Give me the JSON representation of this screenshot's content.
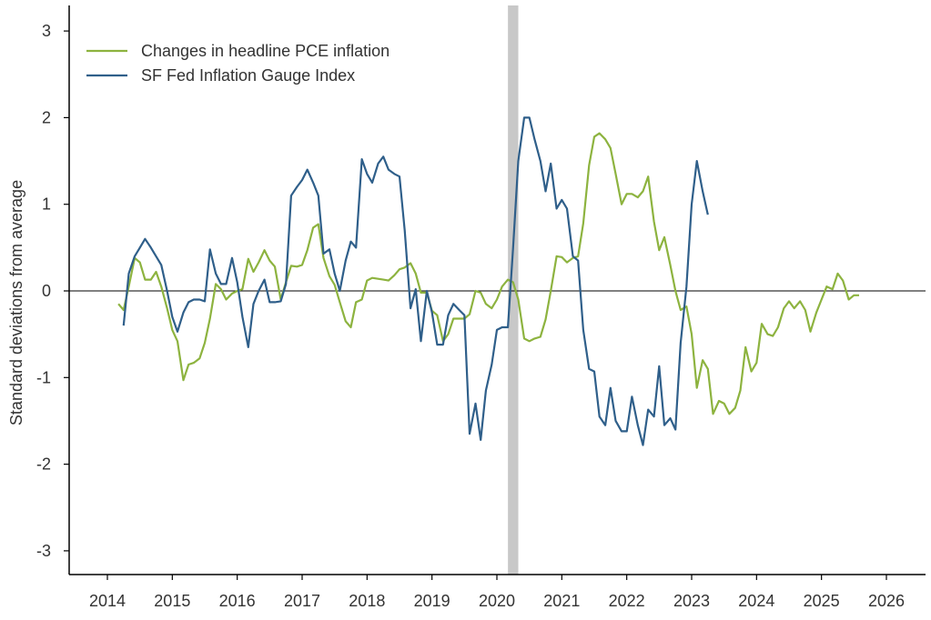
{
  "chart_data": {
    "type": "line",
    "title": "",
    "xlabel": "",
    "ylabel": "Standard deviations from average",
    "xlim": [
      2014,
      2026.7
    ],
    "ylim": [
      -3.3,
      3.3
    ],
    "xticks": [
      2014,
      2015,
      2016,
      2017,
      2018,
      2019,
      2020,
      2021,
      2022,
      2023,
      2024,
      2025,
      2026
    ],
    "yticks": [
      -3,
      -2,
      -1,
      0,
      1,
      2,
      3
    ],
    "legend_position": "top-left",
    "grid": false,
    "zero_line": true,
    "recession_band": [
      2020.17,
      2020.33
    ],
    "recession_color": "#c8c8c8",
    "series": [
      {
        "name": "Changes in headline PCE inflation",
        "color": "#8db33f",
        "points": [
          [
            2014.17,
            -0.15
          ],
          [
            2014.25,
            -0.22
          ],
          [
            2014.33,
            0.05
          ],
          [
            2014.42,
            0.38
          ],
          [
            2014.5,
            0.33
          ],
          [
            2014.58,
            0.13
          ],
          [
            2014.67,
            0.13
          ],
          [
            2014.75,
            0.22
          ],
          [
            2014.83,
            0.05
          ],
          [
            2014.92,
            -0.2
          ],
          [
            2015.0,
            -0.45
          ],
          [
            2015.08,
            -0.58
          ],
          [
            2015.17,
            -1.03
          ],
          [
            2015.25,
            -0.85
          ],
          [
            2015.33,
            -0.83
          ],
          [
            2015.42,
            -0.78
          ],
          [
            2015.5,
            -0.6
          ],
          [
            2015.58,
            -0.32
          ],
          [
            2015.67,
            0.08
          ],
          [
            2015.75,
            0.02
          ],
          [
            2015.83,
            -0.1
          ],
          [
            2015.92,
            -0.03
          ],
          [
            2016.0,
            0.0
          ],
          [
            2016.08,
            0.02
          ],
          [
            2016.17,
            0.37
          ],
          [
            2016.25,
            0.22
          ],
          [
            2016.33,
            0.33
          ],
          [
            2016.42,
            0.47
          ],
          [
            2016.5,
            0.35
          ],
          [
            2016.58,
            0.28
          ],
          [
            2016.67,
            -0.1
          ],
          [
            2016.75,
            0.1
          ],
          [
            2016.83,
            0.29
          ],
          [
            2016.92,
            0.28
          ],
          [
            2017.0,
            0.3
          ],
          [
            2017.08,
            0.47
          ],
          [
            2017.17,
            0.73
          ],
          [
            2017.25,
            0.77
          ],
          [
            2017.33,
            0.38
          ],
          [
            2017.42,
            0.17
          ],
          [
            2017.5,
            0.07
          ],
          [
            2017.58,
            -0.13
          ],
          [
            2017.67,
            -0.35
          ],
          [
            2017.75,
            -0.42
          ],
          [
            2017.83,
            -0.13
          ],
          [
            2017.92,
            -0.1
          ],
          [
            2018.0,
            0.12
          ],
          [
            2018.08,
            0.15
          ],
          [
            2018.17,
            0.14
          ],
          [
            2018.25,
            0.13
          ],
          [
            2018.33,
            0.12
          ],
          [
            2018.42,
            0.18
          ],
          [
            2018.5,
            0.25
          ],
          [
            2018.58,
            0.27
          ],
          [
            2018.67,
            0.32
          ],
          [
            2018.75,
            0.2
          ],
          [
            2018.83,
            -0.02
          ],
          [
            2018.92,
            -0.02
          ],
          [
            2019.0,
            -0.23
          ],
          [
            2019.08,
            -0.28
          ],
          [
            2019.17,
            -0.58
          ],
          [
            2019.25,
            -0.5
          ],
          [
            2019.33,
            -0.32
          ],
          [
            2019.42,
            -0.32
          ],
          [
            2019.5,
            -0.32
          ],
          [
            2019.58,
            -0.27
          ],
          [
            2019.67,
            0.0
          ],
          [
            2019.75,
            -0.02
          ],
          [
            2019.83,
            -0.15
          ],
          [
            2019.92,
            -0.2
          ],
          [
            2020.0,
            -0.1
          ],
          [
            2020.08,
            0.05
          ],
          [
            2020.17,
            0.13
          ],
          [
            2020.25,
            0.1
          ],
          [
            2020.33,
            -0.1
          ],
          [
            2020.42,
            -0.55
          ],
          [
            2020.5,
            -0.58
          ],
          [
            2020.58,
            -0.55
          ],
          [
            2020.67,
            -0.53
          ],
          [
            2020.75,
            -0.33
          ],
          [
            2020.83,
            0.0
          ],
          [
            2020.92,
            0.4
          ],
          [
            2021.0,
            0.39
          ],
          [
            2021.08,
            0.33
          ],
          [
            2021.17,
            0.38
          ],
          [
            2021.25,
            0.4
          ],
          [
            2021.33,
            0.78
          ],
          [
            2021.42,
            1.45
          ],
          [
            2021.5,
            1.78
          ],
          [
            2021.58,
            1.82
          ],
          [
            2021.67,
            1.75
          ],
          [
            2021.75,
            1.65
          ],
          [
            2021.83,
            1.35
          ],
          [
            2021.92,
            1.0
          ],
          [
            2022.0,
            1.12
          ],
          [
            2022.08,
            1.12
          ],
          [
            2022.17,
            1.08
          ],
          [
            2022.25,
            1.15
          ],
          [
            2022.33,
            1.32
          ],
          [
            2022.42,
            0.8
          ],
          [
            2022.5,
            0.47
          ],
          [
            2022.58,
            0.62
          ],
          [
            2022.67,
            0.3
          ],
          [
            2022.75,
            0.0
          ],
          [
            2022.83,
            -0.22
          ],
          [
            2022.92,
            -0.18
          ],
          [
            2023.0,
            -0.5
          ],
          [
            2023.08,
            -1.12
          ],
          [
            2023.17,
            -0.8
          ],
          [
            2023.25,
            -0.9
          ],
          [
            2023.33,
            -1.42
          ],
          [
            2023.42,
            -1.27
          ],
          [
            2023.5,
            -1.3
          ],
          [
            2023.58,
            -1.42
          ],
          [
            2023.67,
            -1.35
          ],
          [
            2023.75,
            -1.15
          ],
          [
            2023.83,
            -0.65
          ],
          [
            2023.92,
            -0.93
          ],
          [
            2024.0,
            -0.83
          ],
          [
            2024.08,
            -0.38
          ],
          [
            2024.17,
            -0.5
          ],
          [
            2024.25,
            -0.52
          ],
          [
            2024.33,
            -0.42
          ],
          [
            2024.42,
            -0.2
          ],
          [
            2024.5,
            -0.12
          ],
          [
            2024.58,
            -0.2
          ],
          [
            2024.67,
            -0.12
          ],
          [
            2024.75,
            -0.22
          ],
          [
            2024.83,
            -0.47
          ],
          [
            2024.92,
            -0.25
          ],
          [
            2025.0,
            -0.1
          ],
          [
            2025.08,
            0.05
          ],
          [
            2025.17,
            0.02
          ],
          [
            2025.25,
            0.2
          ],
          [
            2025.33,
            0.12
          ],
          [
            2025.42,
            -0.1
          ],
          [
            2025.5,
            -0.05
          ],
          [
            2025.58,
            -0.05
          ]
        ]
      },
      {
        "name": "SF Fed Inflation Gauge Index",
        "color": "#2f5f8a",
        "points": [
          [
            2014.25,
            -0.4
          ],
          [
            2014.33,
            0.2
          ],
          [
            2014.42,
            0.4
          ],
          [
            2014.5,
            0.5
          ],
          [
            2014.58,
            0.6
          ],
          [
            2014.67,
            0.5
          ],
          [
            2014.75,
            0.4
          ],
          [
            2014.83,
            0.3
          ],
          [
            2014.92,
            0.0
          ],
          [
            2015.0,
            -0.3
          ],
          [
            2015.08,
            -0.47
          ],
          [
            2015.17,
            -0.25
          ],
          [
            2015.25,
            -0.13
          ],
          [
            2015.33,
            -0.1
          ],
          [
            2015.42,
            -0.1
          ],
          [
            2015.5,
            -0.12
          ],
          [
            2015.58,
            0.48
          ],
          [
            2015.67,
            0.2
          ],
          [
            2015.75,
            0.08
          ],
          [
            2015.83,
            0.08
          ],
          [
            2015.92,
            0.38
          ],
          [
            2016.0,
            0.1
          ],
          [
            2016.08,
            -0.3
          ],
          [
            2016.17,
            -0.65
          ],
          [
            2016.25,
            -0.15
          ],
          [
            2016.33,
            0.0
          ],
          [
            2016.42,
            0.13
          ],
          [
            2016.5,
            -0.13
          ],
          [
            2016.58,
            -0.13
          ],
          [
            2016.67,
            -0.12
          ],
          [
            2016.75,
            0.08
          ],
          [
            2016.83,
            1.1
          ],
          [
            2016.92,
            1.2
          ],
          [
            2017.0,
            1.28
          ],
          [
            2017.08,
            1.4
          ],
          [
            2017.17,
            1.25
          ],
          [
            2017.25,
            1.1
          ],
          [
            2017.33,
            0.43
          ],
          [
            2017.42,
            0.48
          ],
          [
            2017.5,
            0.2
          ],
          [
            2017.58,
            0.0
          ],
          [
            2017.67,
            0.35
          ],
          [
            2017.75,
            0.57
          ],
          [
            2017.83,
            0.5
          ],
          [
            2017.92,
            1.52
          ],
          [
            2018.0,
            1.35
          ],
          [
            2018.08,
            1.25
          ],
          [
            2018.17,
            1.47
          ],
          [
            2018.25,
            1.55
          ],
          [
            2018.33,
            1.4
          ],
          [
            2018.42,
            1.35
          ],
          [
            2018.5,
            1.32
          ],
          [
            2018.58,
            0.7
          ],
          [
            2018.67,
            -0.2
          ],
          [
            2018.75,
            0.02
          ],
          [
            2018.83,
            -0.58
          ],
          [
            2018.92,
            0.0
          ],
          [
            2019.0,
            -0.25
          ],
          [
            2019.08,
            -0.62
          ],
          [
            2019.17,
            -0.62
          ],
          [
            2019.25,
            -0.28
          ],
          [
            2019.33,
            -0.15
          ],
          [
            2019.42,
            -0.22
          ],
          [
            2019.5,
            -0.28
          ],
          [
            2019.58,
            -1.65
          ],
          [
            2019.67,
            -1.3
          ],
          [
            2019.75,
            -1.72
          ],
          [
            2019.83,
            -1.15
          ],
          [
            2019.92,
            -0.85
          ],
          [
            2020.0,
            -0.45
          ],
          [
            2020.08,
            -0.42
          ],
          [
            2020.17,
            -0.42
          ],
          [
            2020.25,
            0.5
          ],
          [
            2020.33,
            1.5
          ],
          [
            2020.42,
            2.0
          ],
          [
            2020.5,
            2.0
          ],
          [
            2020.58,
            1.75
          ],
          [
            2020.67,
            1.5
          ],
          [
            2020.75,
            1.15
          ],
          [
            2020.83,
            1.47
          ],
          [
            2020.92,
            0.95
          ],
          [
            2021.0,
            1.05
          ],
          [
            2021.08,
            0.95
          ],
          [
            2021.17,
            0.4
          ],
          [
            2021.25,
            0.35
          ],
          [
            2021.33,
            -0.45
          ],
          [
            2021.42,
            -0.9
          ],
          [
            2021.5,
            -0.93
          ],
          [
            2021.58,
            -1.45
          ],
          [
            2021.67,
            -1.55
          ],
          [
            2021.75,
            -1.12
          ],
          [
            2021.83,
            -1.5
          ],
          [
            2021.92,
            -1.62
          ],
          [
            2022.0,
            -1.62
          ],
          [
            2022.08,
            -1.22
          ],
          [
            2022.17,
            -1.55
          ],
          [
            2022.25,
            -1.78
          ],
          [
            2022.33,
            -1.37
          ],
          [
            2022.42,
            -1.45
          ],
          [
            2022.5,
            -0.87
          ],
          [
            2022.58,
            -1.55
          ],
          [
            2022.67,
            -1.47
          ],
          [
            2022.75,
            -1.6
          ],
          [
            2022.83,
            -0.6
          ],
          [
            2022.92,
            0.05
          ],
          [
            2023.0,
            1.0
          ],
          [
            2023.08,
            1.5
          ],
          [
            2023.17,
            1.15
          ],
          [
            2023.25,
            0.88
          ]
        ]
      }
    ]
  }
}
